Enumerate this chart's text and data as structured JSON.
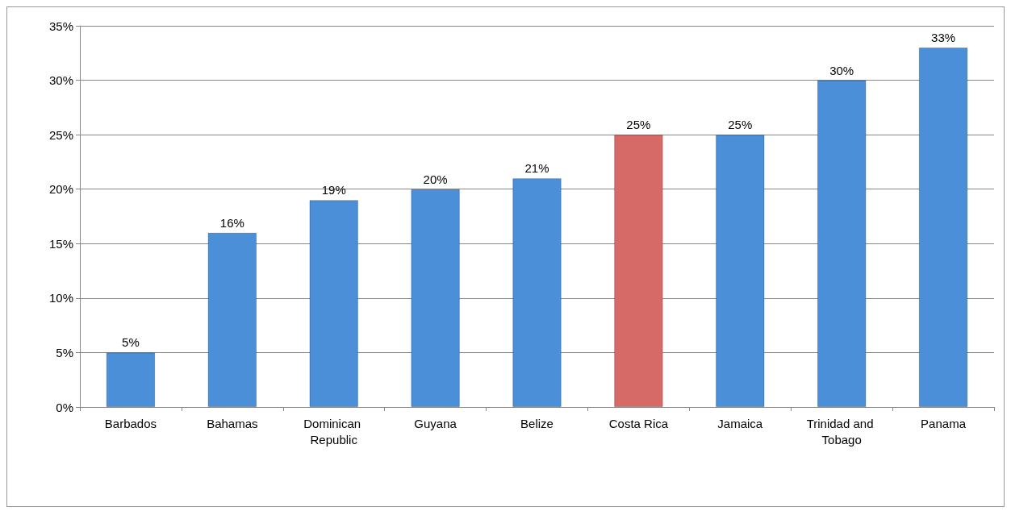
{
  "chart_data": {
    "type": "bar",
    "categories": [
      "Barbados",
      "Bahamas",
      "Dominican Republic",
      "Guyana",
      "Belize",
      "Costa Rica",
      "Jamaica",
      "Trinidad and Tobago",
      "Panama"
    ],
    "values": [
      5,
      16,
      19,
      20,
      21,
      25,
      25,
      30,
      33
    ],
    "value_labels": [
      "5%",
      "16%",
      "19%",
      "20%",
      "21%",
      "25%",
      "25%",
      "30%",
      "33%"
    ],
    "colors": [
      "#4a8fd8",
      "#4a8fd8",
      "#4a8fd8",
      "#4a8fd8",
      "#4a8fd8",
      "#d66a66",
      "#4a8fd8",
      "#4a8fd8",
      "#4a8fd8"
    ],
    "ylim": [
      0,
      35
    ],
    "yticks": [
      {
        "value": 0,
        "label": "0%"
      },
      {
        "value": 5,
        "label": "5%"
      },
      {
        "value": 10,
        "label": "10%"
      },
      {
        "value": 15,
        "label": "15%"
      },
      {
        "value": 20,
        "label": "20%"
      },
      {
        "value": 25,
        "label": "25%"
      },
      {
        "value": 30,
        "label": "30%"
      },
      {
        "value": 35,
        "label": "35%"
      }
    ],
    "grid": "y"
  }
}
